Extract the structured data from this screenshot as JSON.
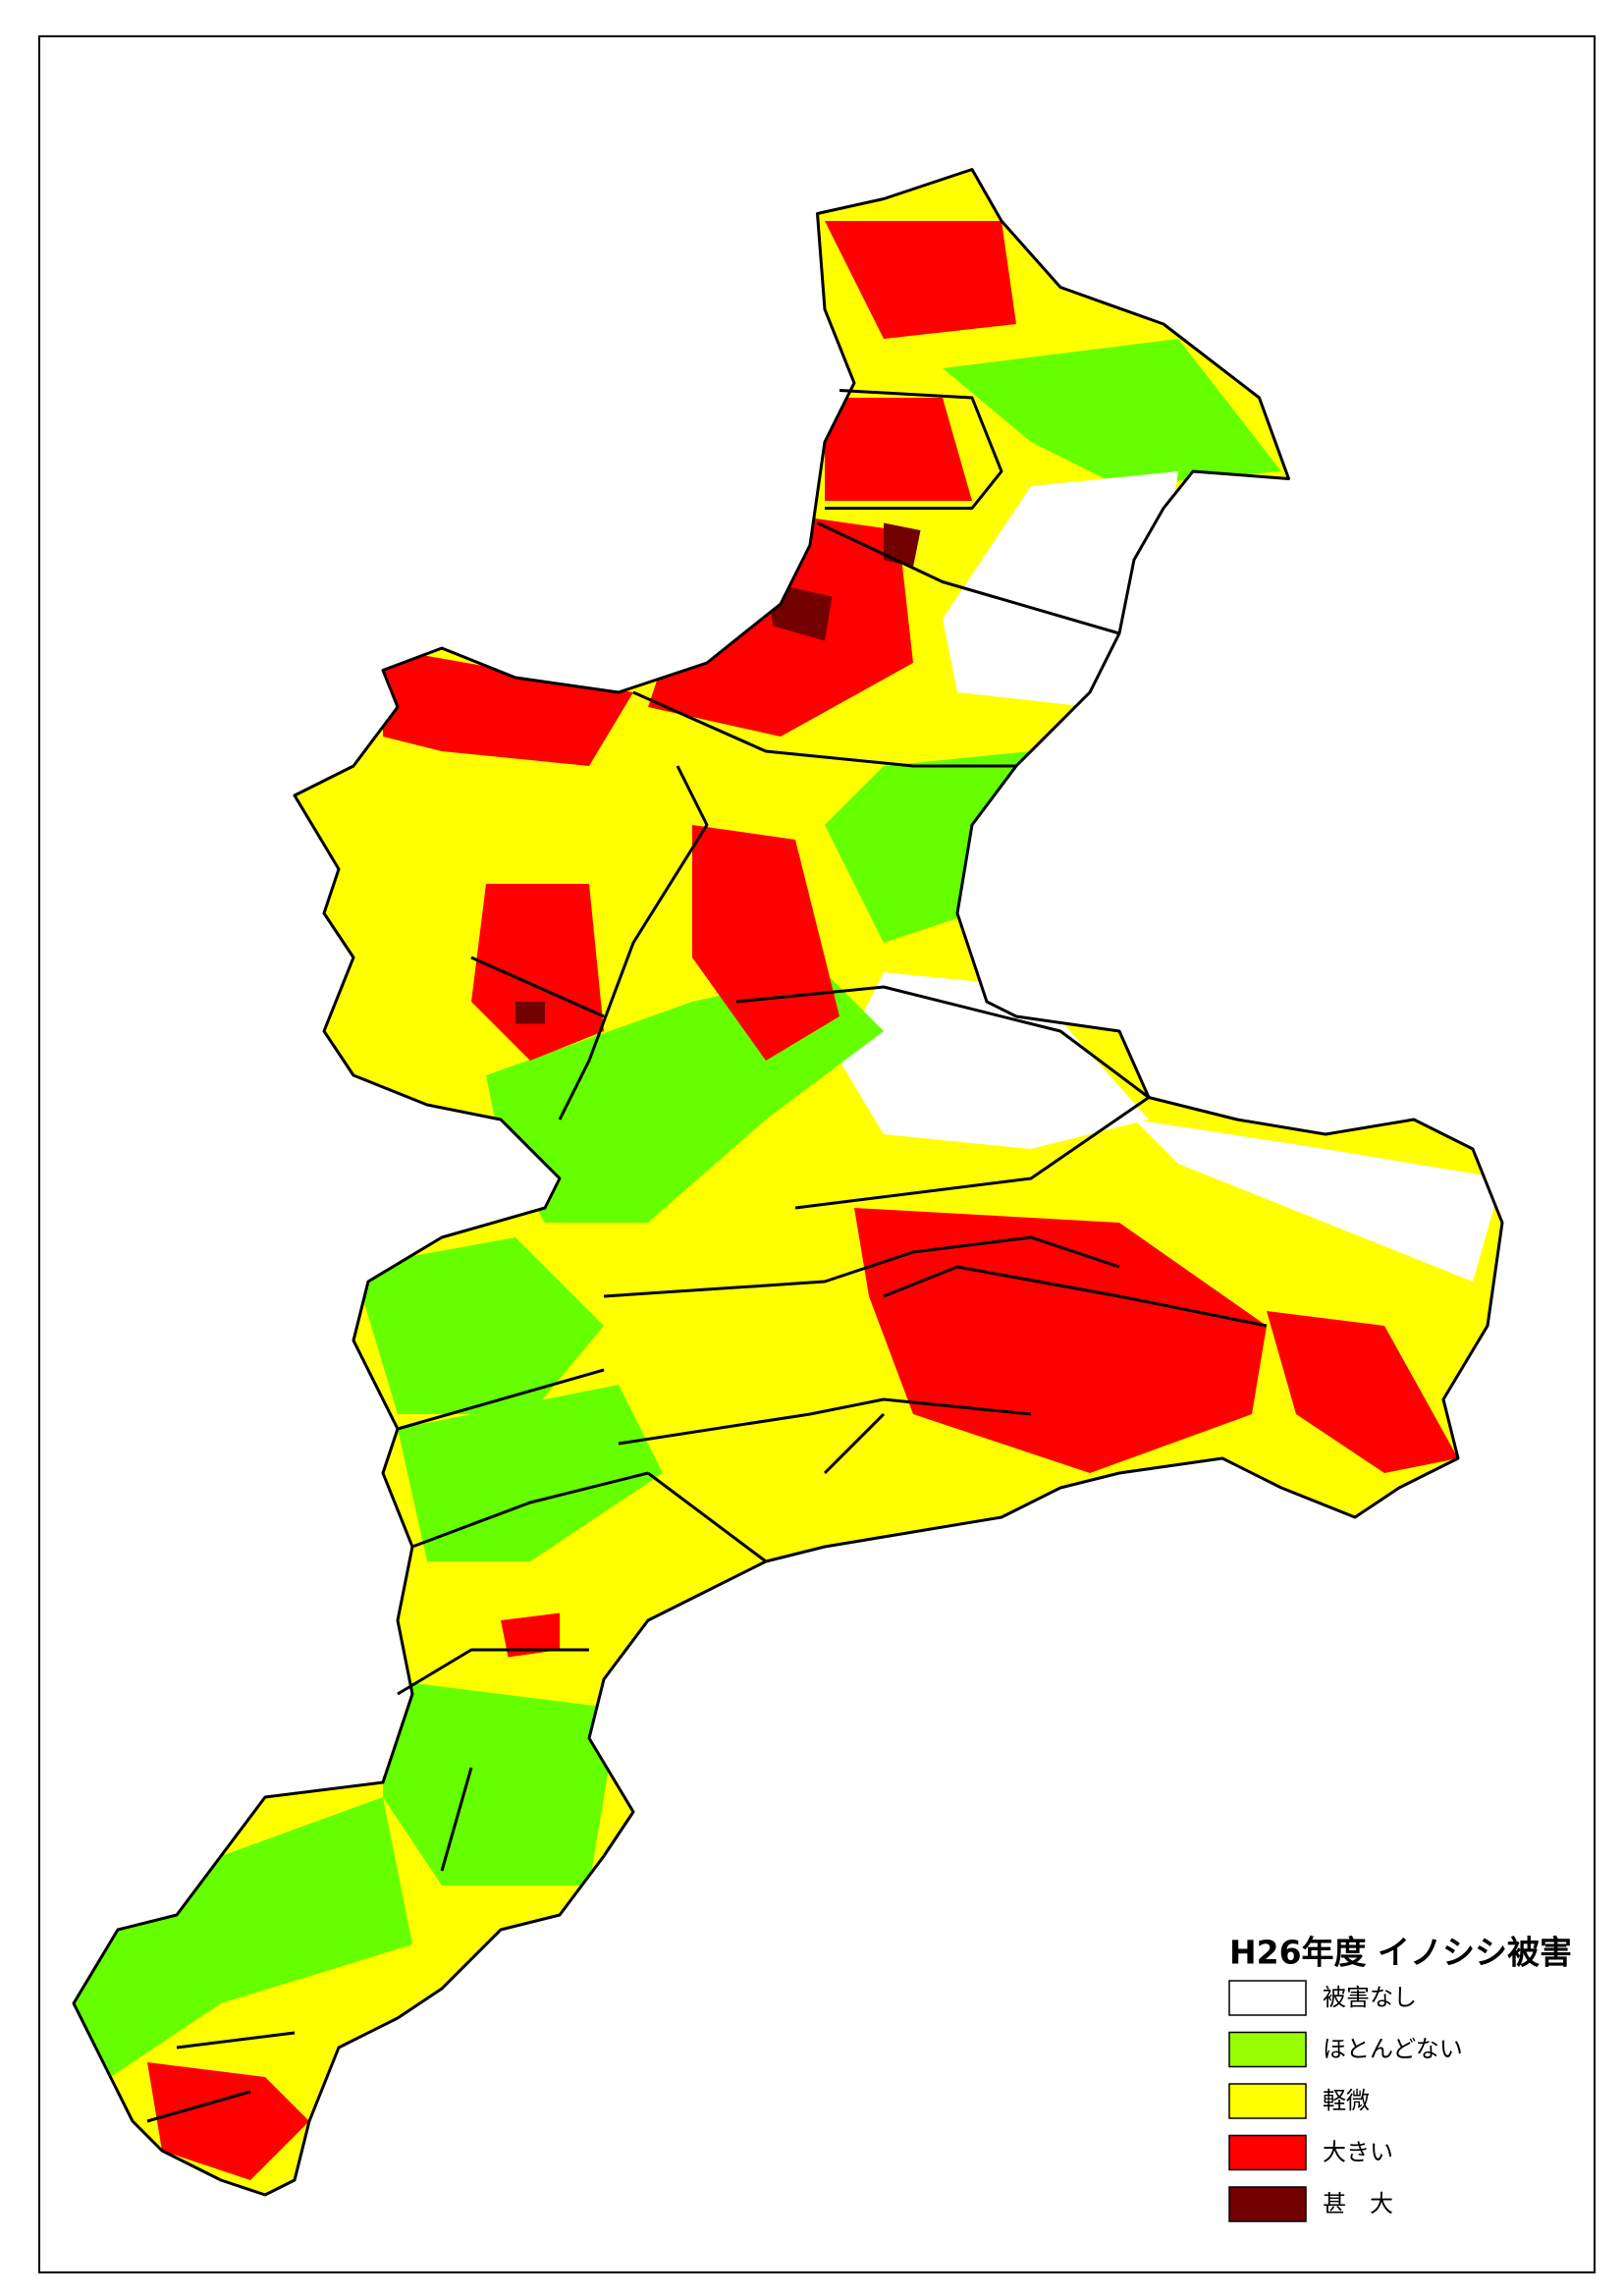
{
  "legend": {
    "title": "H26年度  イノシシ被害",
    "items": [
      {
        "label": "被害なし",
        "color": "#ffffff"
      },
      {
        "label": "ほとんどない",
        "color": "#99ff00"
      },
      {
        "label": "軽微",
        "color": "#ffff00"
      },
      {
        "label": "大きい",
        "color": "#ff0000"
      },
      {
        "label": "甚　大",
        "color": "#730000"
      }
    ]
  }
}
